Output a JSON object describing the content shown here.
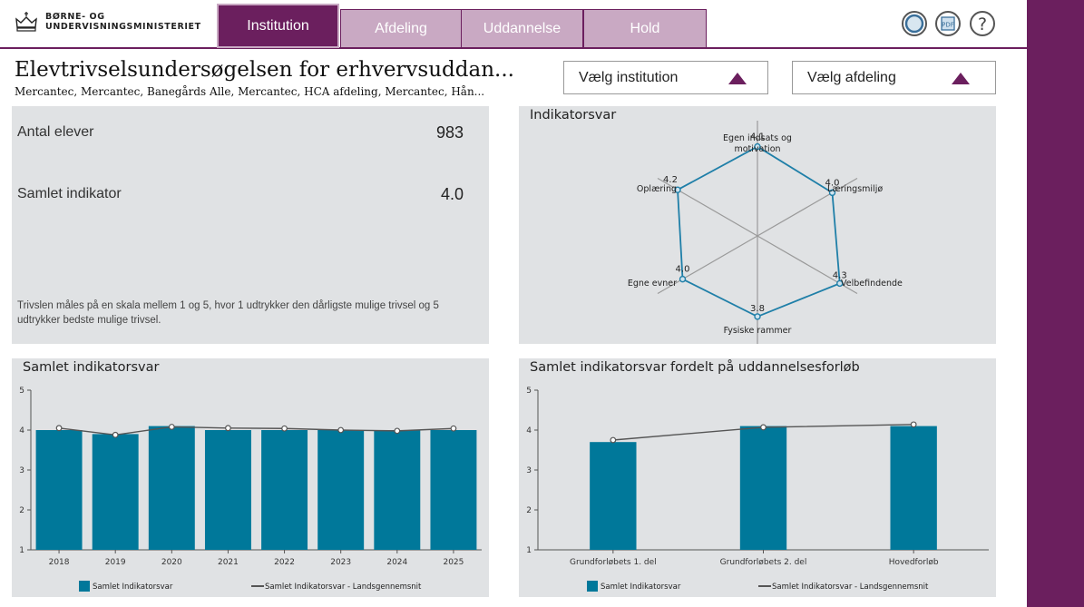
{
  "header": {
    "logo_line1": "BØRNE- OG",
    "logo_line2": "UNDERVISNINGSMINISTERIET",
    "tabs": [
      {
        "label": "Institution",
        "active": true
      },
      {
        "label": "Afdeling",
        "active": false
      },
      {
        "label": "Uddannelse",
        "active": false
      },
      {
        "label": "Hold",
        "active": false
      }
    ],
    "icons": [
      "reset-icon",
      "pdf-icon",
      "help-icon"
    ],
    "pdf_label": "PDF",
    "help_label": "?"
  },
  "page": {
    "title": "Elevtrivselsundersøgelsen for erhvervsuddan...",
    "subtitle": "Mercantec, Mercantec, Banegårds Alle, Mercantec, HCA afdeling, Mercantec, Hån..."
  },
  "filters": {
    "institution_label": "Vælg institution",
    "department_label": "Vælg afdeling"
  },
  "summary": {
    "students_label": "Antal elever",
    "students_value": "983",
    "indicator_label": "Samlet indikator",
    "indicator_value": "4.0",
    "note": "Trivslen måles på en skala mellem 1 og 5, hvor 1 udtrykker den dårligste mulige trivsel og 5 udtrykker bedste mulige trivsel."
  },
  "colors": {
    "accent": "#6b1f5e",
    "tab_inactive": "#c9a9c3",
    "bar": "#00789a",
    "line": "#555555",
    "panel": "#e0e2e4"
  },
  "chart_data": [
    {
      "type": "radar",
      "title": "Indikatorsvar",
      "axes": [
        "Egen indsats og motivation",
        "Læringsmiljø",
        "Velbefindende",
        "Fysiske rammer",
        "Egne evner",
        "Oplæring"
      ],
      "axis_label_lines": [
        [
          "Egen indsats og",
          "motivation"
        ],
        [
          "Læringsmiljø"
        ],
        [
          "Velbefindende"
        ],
        [
          "Fysiske rammer"
        ],
        [
          "Egne evner"
        ],
        [
          "Oplæring"
        ]
      ],
      "values": [
        4.1,
        4.0,
        4.3,
        3.8,
        4.0,
        4.2
      ],
      "value_labels": [
        "4.1",
        "4.0",
        "4.3",
        "3.8",
        "4.0",
        "4.2"
      ],
      "range": [
        1,
        5
      ]
    },
    {
      "type": "bar",
      "title": "Samlet indikatorsvar",
      "categories": [
        "2018",
        "2019",
        "2020",
        "2021",
        "2022",
        "2023",
        "2024",
        "2025"
      ],
      "series": [
        {
          "name": "Samlet Indikatorsvar",
          "kind": "bar",
          "values": [
            4.0,
            3.9,
            4.1,
            4.0,
            4.0,
            4.0,
            4.0,
            4.0
          ]
        },
        {
          "name": "Samlet Indikatorsvar - Landsgennemsnit",
          "kind": "line",
          "values": [
            4.05,
            3.88,
            4.08,
            4.05,
            4.04,
            4.0,
            3.98,
            4.04
          ]
        }
      ],
      "yticks": [
        "1",
        "2",
        "3",
        "4",
        "5"
      ],
      "ylim": [
        1,
        5
      ],
      "legend": "bottom"
    },
    {
      "type": "bar",
      "title": "Samlet indikatorsvar fordelt på uddannelsesforløb",
      "categories": [
        "Grundforløbets 1. del",
        "Grundforløbets 2. del",
        "Hovedforløb"
      ],
      "series": [
        {
          "name": "Samlet Indikatorsvar",
          "kind": "bar",
          "values": [
            3.7,
            4.1,
            4.1
          ]
        },
        {
          "name": "Samlet Indikatorsvar - Landsgennemsnit",
          "kind": "line",
          "values": [
            3.75,
            4.07,
            4.14
          ]
        }
      ],
      "yticks": [
        "1",
        "2",
        "3",
        "4",
        "5"
      ],
      "ylim": [
        1,
        5
      ],
      "legend": "bottom"
    }
  ]
}
